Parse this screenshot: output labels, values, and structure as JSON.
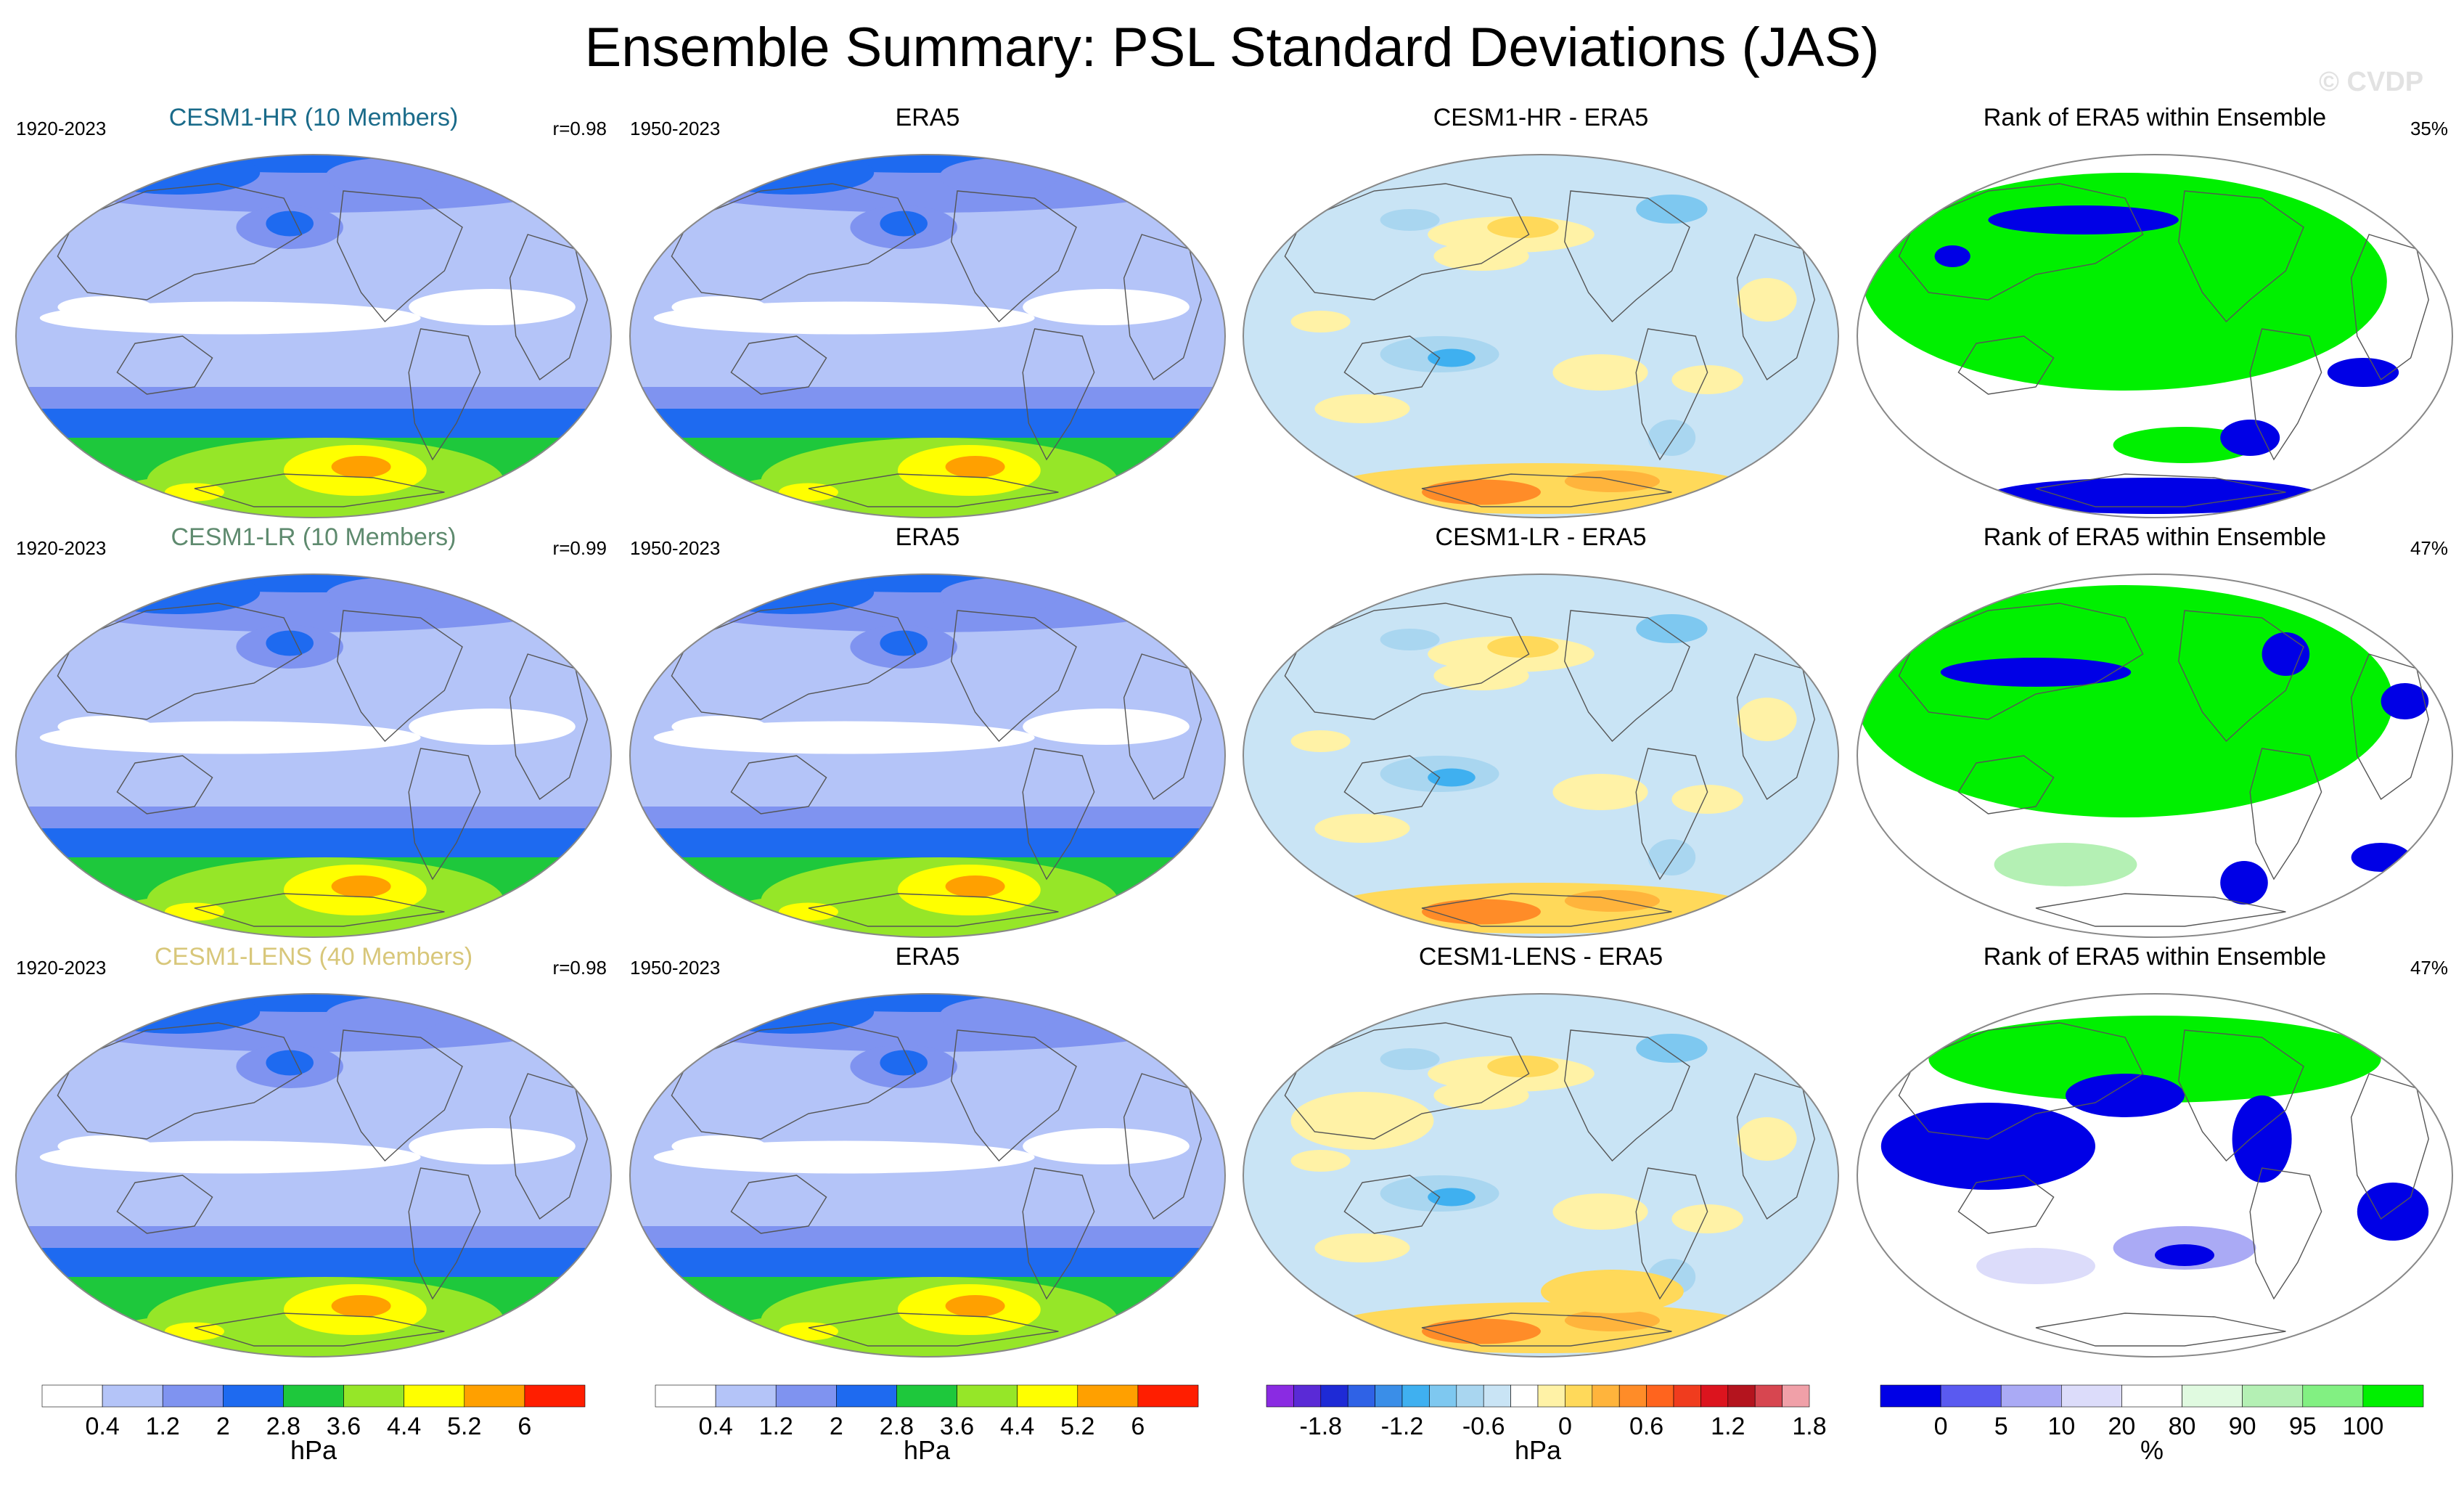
{
  "title": "Ensemble Summary: PSL Standard Deviations (JAS)",
  "watermark": "© CVDP",
  "colors": {
    "hr_title": "#1a6b8a",
    "lr_title": "#5e8a6e",
    "lens_title": "#d8c77a",
    "coast": "#555555",
    "ocean_outline": "#888888"
  },
  "chart_data": [
    {
      "type": "heatmap",
      "row": "CESM1-HR",
      "titles": [
        "CESM1-HR (10 Members)",
        "ERA5",
        "CESM1-HR - ERA5",
        "Rank of ERA5 within Ensemble"
      ],
      "period_model": "1920-2023",
      "period_obs": "1950-2023",
      "pattern_correlation": "r=0.98",
      "rank_summary": "35%"
    },
    {
      "type": "heatmap",
      "row": "CESM1-LR",
      "titles": [
        "CESM1-LR (10 Members)",
        "ERA5",
        "CESM1-LR - ERA5",
        "Rank of ERA5 within Ensemble"
      ],
      "period_model": "1920-2023",
      "period_obs": "1950-2023",
      "pattern_correlation": "r=0.99",
      "rank_summary": "47%"
    },
    {
      "type": "heatmap",
      "row": "CESM1-LENS",
      "titles": [
        "CESM1-LENS (40 Members)",
        "ERA5",
        "CESM1-LENS - ERA5",
        "Rank of ERA5 within Ensemble"
      ],
      "period_model": "1920-2023",
      "period_obs": "1950-2023",
      "pattern_correlation": "r=0.98",
      "rank_summary": "47%"
    }
  ],
  "colorbars": {
    "stddev": {
      "unit": "hPa",
      "ticks": [
        "0.4",
        "1.2",
        "2",
        "2.8",
        "3.6",
        "4.4",
        "5.2",
        "6"
      ],
      "colors": [
        "#ffffff",
        "#b4c4f8",
        "#7f93f0",
        "#1e6af0",
        "#1ec83c",
        "#96e628",
        "#ffff00",
        "#ffa000",
        "#ff1e00"
      ]
    },
    "diff": {
      "unit": "hPa",
      "ticks": [
        "-1.8",
        "-1.2",
        "-0.6",
        "0",
        "0.6",
        "1.2",
        "1.8"
      ],
      "colors": [
        "#8a2be2",
        "#5a2ad6",
        "#1e2ad6",
        "#2f62e6",
        "#3a8ee8",
        "#3fb0f0",
        "#7ec8f0",
        "#a9d6f0",
        "#c9e4f5",
        "#ffffff",
        "#fff2a6",
        "#ffd95a",
        "#ffb43c",
        "#ff8c28",
        "#ff641e",
        "#f03c1e",
        "#dc141e",
        "#b4141e",
        "#d74650",
        "#f0a0a8"
      ]
    },
    "rank": {
      "unit": "%",
      "ticks": [
        "0",
        "5",
        "10",
        "20",
        "80",
        "90",
        "95",
        "100"
      ],
      "colors": [
        "#0000e6",
        "#5a5af0",
        "#aaaaf5",
        "#dcdcfa",
        "#ffffff",
        "#e0fae0",
        "#b4f0b4",
        "#82f082",
        "#00f000"
      ]
    }
  }
}
